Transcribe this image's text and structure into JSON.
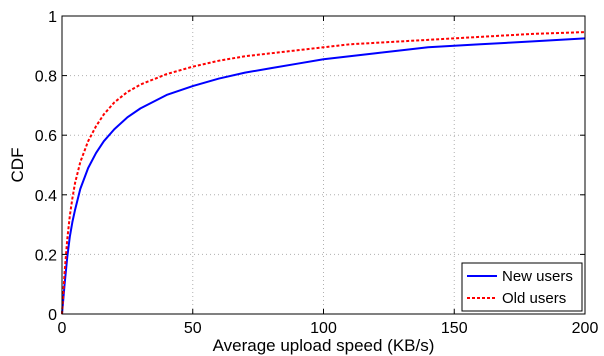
{
  "chart_data": {
    "type": "line",
    "title": "",
    "xlabel": "Average upload speed (KB/s)",
    "ylabel": "CDF",
    "xlim": [
      0,
      200
    ],
    "ylim": [
      0,
      1
    ],
    "xticks": [
      0,
      50,
      100,
      150,
      200
    ],
    "yticks": [
      0,
      0.2,
      0.4,
      0.6,
      0.8,
      1
    ],
    "xtick_labels": [
      "0",
      "50",
      "100",
      "150",
      "200"
    ],
    "ytick_labels": [
      "0",
      "0.2",
      "0.4",
      "0.6",
      "0.8",
      "1"
    ],
    "grid": true,
    "legend_position": "bottom-right",
    "series": [
      {
        "name": "New users",
        "color": "#0000ff",
        "line_style": "solid",
        "x": [
          0,
          1,
          2,
          3,
          4,
          5,
          7,
          10,
          13,
          16,
          20,
          25,
          30,
          40,
          50,
          60,
          70,
          80,
          90,
          100,
          110,
          120,
          130,
          140,
          150,
          160,
          170,
          180,
          190,
          200
        ],
        "y": [
          0,
          0.1,
          0.19,
          0.26,
          0.31,
          0.35,
          0.42,
          0.49,
          0.54,
          0.58,
          0.62,
          0.66,
          0.69,
          0.735,
          0.765,
          0.79,
          0.81,
          0.825,
          0.84,
          0.855,
          0.865,
          0.875,
          0.885,
          0.895,
          0.9,
          0.905,
          0.91,
          0.915,
          0.92,
          0.925
        ]
      },
      {
        "name": "Old users",
        "color": "#ff0000",
        "line_style": "dashed",
        "x": [
          0,
          1,
          2,
          3,
          4,
          5,
          7,
          10,
          13,
          16,
          20,
          25,
          30,
          40,
          50,
          60,
          70,
          80,
          90,
          100,
          110,
          120,
          130,
          140,
          150,
          160,
          170,
          180,
          190,
          200
        ],
        "y": [
          0,
          0.14,
          0.25,
          0.33,
          0.39,
          0.44,
          0.51,
          0.58,
          0.63,
          0.67,
          0.71,
          0.745,
          0.77,
          0.805,
          0.83,
          0.85,
          0.865,
          0.875,
          0.885,
          0.895,
          0.905,
          0.91,
          0.915,
          0.92,
          0.925,
          0.93,
          0.935,
          0.94,
          0.943,
          0.946
        ]
      }
    ]
  }
}
